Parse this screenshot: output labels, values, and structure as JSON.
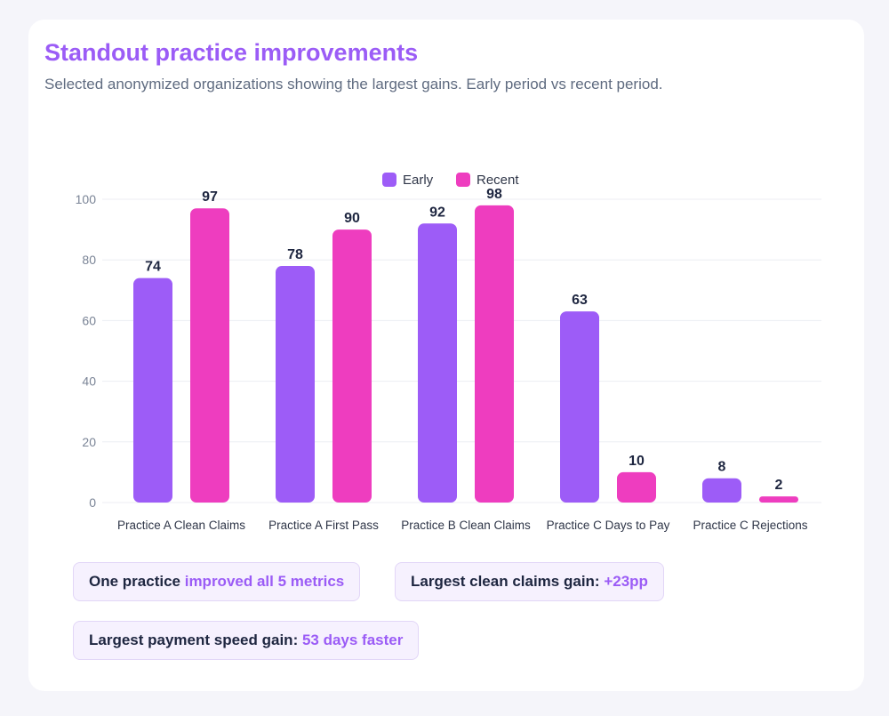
{
  "header": {
    "title": "Standout practice improvements",
    "subtitle": "Selected anonymized organizations showing the largest gains. Early period vs recent period."
  },
  "chart_data": {
    "type": "bar",
    "categories": [
      "Practice A Clean Claims",
      "Practice A First Pass",
      "Practice B Clean Claims",
      "Practice C Days to Pay",
      "Practice C Rejections"
    ],
    "series": [
      {
        "name": "Early",
        "values": [
          74,
          78,
          92,
          63,
          8
        ],
        "color": "#9d5cf7"
      },
      {
        "name": "Recent",
        "values": [
          97,
          90,
          98,
          10,
          2
        ],
        "color": "#ee3dbf"
      }
    ],
    "ylim": [
      0,
      100
    ],
    "yticks": [
      0,
      20,
      40,
      60,
      80,
      100
    ],
    "grid": true,
    "legend": "top-center",
    "data_labels": true
  },
  "callouts": [
    {
      "text": "One practice ",
      "highlight": "improved all 5 metrics"
    },
    {
      "text": "Largest clean claims gain: ",
      "highlight": "+23pp"
    },
    {
      "text": "Largest payment speed gain: ",
      "highlight": "53 days faster"
    }
  ]
}
